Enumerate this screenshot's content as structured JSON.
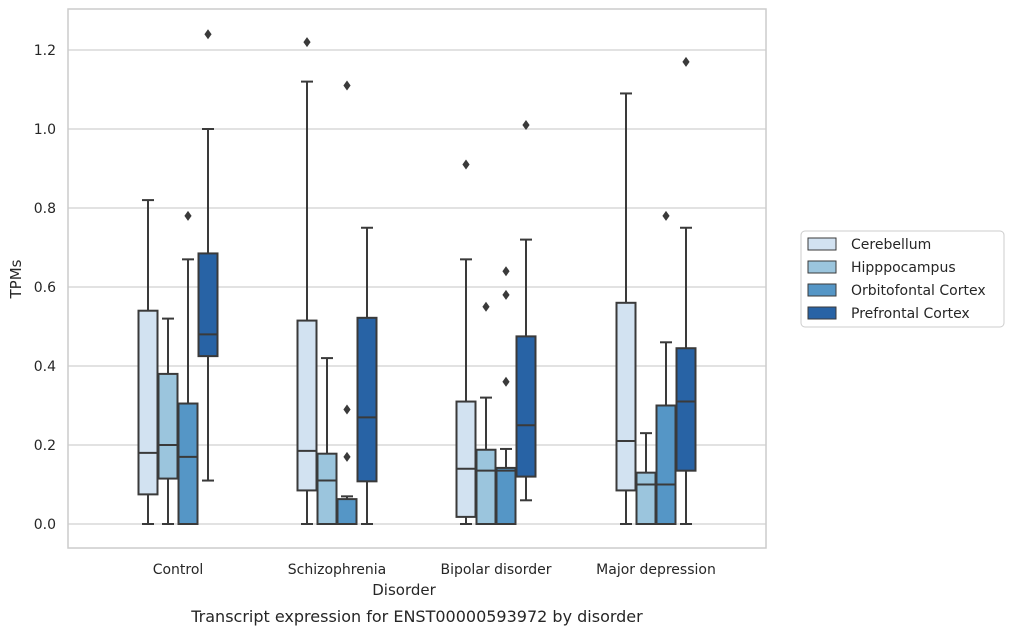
{
  "caption": "Transcript expression for ENST00000593972 by disorder",
  "colors": {
    "Cerebellum": "#d2e2f1",
    "Hipppocampus": "#9bc5dd",
    "Orbitofontal Cortex": "#5596c6",
    "Prefrontal Cortex": "#2863a5",
    "edge": "#3a3a3a",
    "grid": "#d0d0d0",
    "frame": "#cccccc"
  },
  "chart_data": {
    "type": "box",
    "xlabel": "Disorder",
    "ylabel": "TPMs",
    "ylim": [
      -0.06,
      1.31
    ],
    "yticks": [
      "0.0",
      "0.2",
      "0.4",
      "0.6",
      "0.8",
      "1.0",
      "1.2"
    ],
    "grid": "horizontal",
    "legend_position": "right",
    "categories": [
      "Control",
      "Schizophrenia",
      "Bipolar disorder",
      "Major depression"
    ],
    "series": [
      {
        "name": "Cerebellum",
        "boxes": [
          {
            "min": 0.0,
            "q1": 0.075,
            "median": 0.18,
            "q3": 0.54,
            "max": 0.82,
            "outliers": []
          },
          {
            "min": 0.0,
            "q1": 0.085,
            "median": 0.185,
            "q3": 0.515,
            "max": 1.12,
            "outliers": [
              1.22
            ]
          },
          {
            "min": 0.0,
            "q1": 0.018,
            "median": 0.14,
            "q3": 0.31,
            "max": 0.67,
            "outliers": [
              0.91
            ]
          },
          {
            "min": 0.0,
            "q1": 0.085,
            "median": 0.21,
            "q3": 0.56,
            "max": 1.09,
            "outliers": []
          }
        ]
      },
      {
        "name": "Hipppocampus",
        "boxes": [
          {
            "min": 0.0,
            "q1": 0.115,
            "median": 0.2,
            "q3": 0.38,
            "max": 0.52,
            "outliers": []
          },
          {
            "min": 0.0,
            "q1": 0.0,
            "median": 0.11,
            "q3": 0.178,
            "max": 0.42,
            "outliers": []
          },
          {
            "min": 0.0,
            "q1": 0.0,
            "median": 0.135,
            "q3": 0.188,
            "max": 0.32,
            "outliers": [
              0.55
            ]
          },
          {
            "min": 0.0,
            "q1": 0.0,
            "median": 0.1,
            "q3": 0.13,
            "max": 0.23,
            "outliers": []
          }
        ]
      },
      {
        "name": "Orbitofontal Cortex",
        "boxes": [
          {
            "min": 0.0,
            "q1": 0.0,
            "median": 0.17,
            "q3": 0.305,
            "max": 0.67,
            "outliers": [
              0.78
            ]
          },
          {
            "min": 0.0,
            "q1": 0.0,
            "median": 0.0,
            "q3": 0.063,
            "max": 0.07,
            "outliers": [
              0.17,
              0.29,
              1.11
            ]
          },
          {
            "min": 0.0,
            "q1": 0.0,
            "median": 0.135,
            "q3": 0.142,
            "max": 0.19,
            "outliers": [
              0.36,
              0.58,
              0.64
            ]
          },
          {
            "min": 0.0,
            "q1": 0.0,
            "median": 0.1,
            "q3": 0.3,
            "max": 0.46,
            "outliers": [
              0.78
            ]
          }
        ]
      },
      {
        "name": "Prefrontal Cortex",
        "boxes": [
          {
            "min": 0.11,
            "q1": 0.425,
            "median": 0.48,
            "q3": 0.685,
            "max": 1.0,
            "outliers": [
              1.24
            ]
          },
          {
            "min": 0.0,
            "q1": 0.108,
            "median": 0.27,
            "q3": 0.522,
            "max": 0.75,
            "outliers": []
          },
          {
            "min": 0.06,
            "q1": 0.12,
            "median": 0.25,
            "q3": 0.475,
            "max": 0.72,
            "outliers": [
              1.01
            ]
          },
          {
            "min": 0.0,
            "q1": 0.135,
            "median": 0.31,
            "q3": 0.445,
            "max": 0.75,
            "outliers": [
              1.17
            ]
          }
        ]
      }
    ]
  }
}
